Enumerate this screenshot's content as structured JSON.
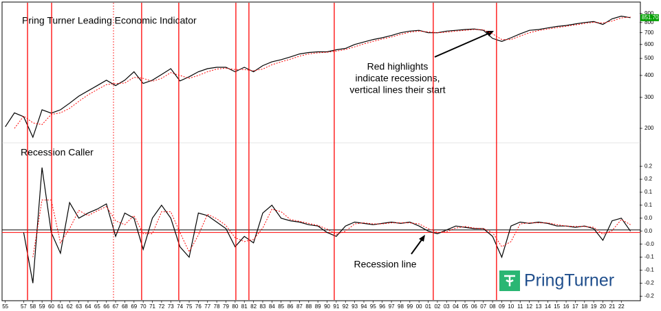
{
  "chart_data": [
    {
      "type": "line",
      "title": "Pring Turner Leading Economic Indicator",
      "log_scale": true,
      "x": [
        1955,
        1956,
        1957,
        1958,
        1959,
        1960,
        1961,
        1962,
        1963,
        1964,
        1965,
        1966,
        1967,
        1968,
        1969,
        1970,
        1971,
        1972,
        1973,
        1974,
        1975,
        1976,
        1977,
        1978,
        1979,
        1980,
        1981,
        1982,
        1983,
        1984,
        1985,
        1986,
        1987,
        1988,
        1989,
        1990,
        1991,
        1992,
        1993,
        1994,
        1995,
        1996,
        1997,
        1998,
        1999,
        2000,
        2001,
        2002,
        2003,
        2004,
        2005,
        2006,
        2007,
        2008,
        2009,
        2010,
        2011,
        2012,
        2013,
        2014,
        2015,
        2016,
        2017,
        2018,
        2019,
        2020,
        2021,
        2022,
        2023
      ],
      "series": [
        {
          "color": "#000000",
          "dash": false,
          "values": [
            204,
            245,
            233,
            178,
            255,
            244,
            255,
            278,
            305,
            327,
            350,
            376,
            350,
            376,
            420,
            360,
            376,
            405,
            437,
            372,
            393,
            420,
            437,
            445,
            445,
            420,
            445,
            420,
            455,
            478,
            492,
            510,
            530,
            540,
            545,
            545,
            560,
            570,
            600,
            620,
            640,
            655,
            675,
            700,
            715,
            722,
            700,
            700,
            715,
            722,
            730,
            735,
            722,
            650,
            625,
            655,
            690,
            722,
            730,
            745,
            760,
            770,
            785,
            800,
            810,
            780,
            840,
            870,
            852
          ]
        },
        {
          "color": "#ff0000",
          "dash": true,
          "values": [
            null,
            200,
            235,
            215,
            210,
            240,
            245,
            260,
            285,
            310,
            332,
            355,
            360,
            362,
            390,
            385,
            370,
            385,
            415,
            400,
            385,
            400,
            420,
            435,
            440,
            432,
            432,
            425,
            435,
            460,
            478,
            495,
            515,
            530,
            538,
            542,
            550,
            562,
            582,
            605,
            625,
            645,
            662,
            685,
            705,
            715,
            708,
            700,
            705,
            715,
            722,
            730,
            728,
            690,
            640,
            640,
            670,
            700,
            720,
            735,
            748,
            762,
            775,
            790,
            802,
            795,
            815,
            850,
            860
          ]
        }
      ],
      "xlim": [
        1954.8,
        2024.0
      ],
      "ylim": [
        167,
        1000
      ],
      "yticks": [
        200,
        300,
        400,
        500,
        600,
        700,
        800,
        900
      ],
      "current_value_label": "851.70",
      "vlines": [
        {
          "value": 1957.42,
          "color": "#ff0000",
          "dash": false
        },
        {
          "value": 1960.04,
          "color": "#ff0000",
          "dash": false
        },
        {
          "value": 1966.77,
          "color": "#ff0000",
          "dash": true
        },
        {
          "value": 1969.83,
          "color": "#ff0000",
          "dash": false
        },
        {
          "value": 1973.87,
          "color": "#ff0000",
          "dash": false
        },
        {
          "value": 1980.08,
          "color": "#ff0000",
          "dash": false
        },
        {
          "value": 1981.5,
          "color": "#ff0000",
          "dash": false
        },
        {
          "value": 1990.78,
          "color": "#ff0000",
          "dash": false
        },
        {
          "value": 2001.55,
          "color": "#ff0000",
          "dash": false
        },
        {
          "value": 2008.43,
          "color": "#ff0000",
          "dash": false
        }
      ],
      "annotation": [
        "Red highlights",
        "indicate recessions,",
        "vertical lines their start"
      ]
    },
    {
      "type": "line",
      "title": "Recession Caller",
      "x": [
        1955,
        1956,
        1957,
        1958,
        1959,
        1960,
        1961,
        1962,
        1963,
        1964,
        1965,
        1966,
        1967,
        1968,
        1969,
        1970,
        1971,
        1972,
        1973,
        1974,
        1975,
        1976,
        1977,
        1978,
        1979,
        1980,
        1981,
        1982,
        1983,
        1984,
        1985,
        1986,
        1987,
        1988,
        1989,
        1990,
        1991,
        1992,
        1993,
        1994,
        1995,
        1996,
        1997,
        1998,
        1999,
        2000,
        2001,
        2002,
        2003,
        2004,
        2005,
        2006,
        2007,
        2008,
        2009,
        2010,
        2011,
        2012,
        2013,
        2014,
        2015,
        2016,
        2017,
        2018,
        2019,
        2020,
        2021,
        2022,
        2023
      ],
      "series": [
        {
          "color": "#000000",
          "dash": false,
          "values": [
            null,
            null,
            -0.005,
            -0.2,
            0.245,
            -0.005,
            -0.085,
            0.11,
            0.05,
            0.07,
            0.085,
            0.105,
            -0.02,
            0.07,
            0.05,
            -0.07,
            0.05,
            0.1,
            0.05,
            -0.06,
            -0.1,
            0.07,
            0.06,
            0.035,
            0.01,
            -0.06,
            -0.02,
            -0.045,
            0.07,
            0.1,
            0.05,
            0.04,
            0.035,
            0.025,
            0.02,
            -0.005,
            -0.02,
            0.02,
            0.035,
            0.03,
            0.025,
            0.03,
            0.035,
            0.03,
            0.035,
            0.02,
            0,
            -0.01,
            0.005,
            0.02,
            0.015,
            0.01,
            0.01,
            -0.02,
            -0.1,
            0.02,
            0.035,
            0.03,
            0.035,
            0.03,
            0.02,
            0.02,
            0.015,
            0.02,
            0.01,
            -0.035,
            0.04,
            0.05,
            0.0
          ]
        },
        {
          "color": "#ff0000",
          "dash": true,
          "values": [
            null,
            null,
            null,
            -0.1,
            0.12,
            0.12,
            -0.045,
            0.01,
            0.08,
            0.06,
            0.078,
            0.095,
            0.04,
            0.025,
            0.06,
            -0.01,
            -0.01,
            0.075,
            0.075,
            -0.005,
            -0.08,
            -0.015,
            0.065,
            0.048,
            0.022,
            -0.025,
            -0.04,
            -0.032,
            0.012,
            0.085,
            0.075,
            0.045,
            0.038,
            0.03,
            0.022,
            0.008,
            -0.012,
            0.0,
            0.028,
            0.032,
            0.028,
            0.028,
            0.032,
            0.032,
            0.032,
            0.028,
            0.01,
            -0.005,
            -0.002,
            0.012,
            0.018,
            0.012,
            0.01,
            -0.005,
            -0.06,
            -0.04,
            0.028,
            0.032,
            0.032,
            0.032,
            0.025,
            0.02,
            0.018,
            0.018,
            0.015,
            -0.012,
            0.002,
            0.045,
            0.025
          ]
        }
      ],
      "xlim": [
        1954.8,
        2024.0
      ],
      "ylim": [
        -0.265,
        0.335
      ],
      "yticks": [
        {
          "value": 0.25,
          "label": "0.2"
        },
        {
          "value": 0.2,
          "label": "0.2"
        },
        {
          "value": 0.15,
          "label": "0.1"
        },
        {
          "value": 0.1,
          "label": "0.1"
        },
        {
          "value": 0.05,
          "label": "0.0"
        },
        {
          "value": 0.0,
          "label": "0.0"
        },
        {
          "value": -0.05,
          "label": "-0.0"
        },
        {
          "value": -0.1,
          "label": "-0.1"
        },
        {
          "value": -0.15,
          "label": "-0.1"
        },
        {
          "value": -0.2,
          "label": "-0.2"
        },
        {
          "value": -0.25,
          "label": "-0.2"
        }
      ],
      "hlines": [
        {
          "value": 0.005,
          "color": "#000000"
        },
        {
          "value": -0.005,
          "color": "#ff0000"
        }
      ],
      "annotation": "Recession line",
      "xticks": [
        {
          "value": 1955,
          "label": "55"
        },
        {
          "value": 1957,
          "label": "57"
        },
        {
          "value": 1958,
          "label": "58"
        },
        {
          "value": 1959,
          "label": "59"
        },
        {
          "value": 1960,
          "label": "60"
        },
        {
          "value": 1961,
          "label": "61"
        },
        {
          "value": 1962,
          "label": "62"
        },
        {
          "value": 1963,
          "label": "63"
        },
        {
          "value": 1964,
          "label": "64"
        },
        {
          "value": 1965,
          "label": "65"
        },
        {
          "value": 1966,
          "label": "66"
        },
        {
          "value": 1967,
          "label": "67"
        },
        {
          "value": 1968,
          "label": "68"
        },
        {
          "value": 1969,
          "label": "69"
        },
        {
          "value": 1970,
          "label": "70"
        },
        {
          "value": 1971,
          "label": "71"
        },
        {
          "value": 1972,
          "label": "72"
        },
        {
          "value": 1973,
          "label": "73"
        },
        {
          "value": 1974,
          "label": "74"
        },
        {
          "value": 1975,
          "label": "75"
        },
        {
          "value": 1976,
          "label": "76"
        },
        {
          "value": 1977,
          "label": "77"
        },
        {
          "value": 1978,
          "label": "78"
        },
        {
          "value": 1979,
          "label": "79"
        },
        {
          "value": 1980,
          "label": "80"
        },
        {
          "value": 1981,
          "label": "81"
        },
        {
          "value": 1982,
          "label": "82"
        },
        {
          "value": 1983,
          "label": "83"
        },
        {
          "value": 1984,
          "label": "84"
        },
        {
          "value": 1985,
          "label": "85"
        },
        {
          "value": 1986,
          "label": "86"
        },
        {
          "value": 1987,
          "label": "87"
        },
        {
          "value": 1988,
          "label": "88"
        },
        {
          "value": 1989,
          "label": "89"
        },
        {
          "value": 1990,
          "label": "90"
        },
        {
          "value": 1991,
          "label": "91"
        },
        {
          "value": 1992,
          "label": "92"
        },
        {
          "value": 1993,
          "label": "93"
        },
        {
          "value": 1994,
          "label": "94"
        },
        {
          "value": 1995,
          "label": "95"
        },
        {
          "value": 1996,
          "label": "96"
        },
        {
          "value": 1997,
          "label": "97"
        },
        {
          "value": 1998,
          "label": "98"
        },
        {
          "value": 1999,
          "label": "99"
        },
        {
          "value": 2000,
          "label": "00"
        },
        {
          "value": 2001,
          "label": "01"
        },
        {
          "value": 2002,
          "label": "02"
        },
        {
          "value": 2003,
          "label": "03"
        },
        {
          "value": 2004,
          "label": "04"
        },
        {
          "value": 2005,
          "label": "05"
        },
        {
          "value": 2006,
          "label": "06"
        },
        {
          "value": 2007,
          "label": "07"
        },
        {
          "value": 2008,
          "label": "08"
        },
        {
          "value": 2009,
          "label": "09"
        },
        {
          "value": 2010,
          "label": "10"
        },
        {
          "value": 2011,
          "label": "11"
        },
        {
          "value": 2012,
          "label": "12"
        },
        {
          "value": 2013,
          "label": "13"
        },
        {
          "value": 2014,
          "label": "14"
        },
        {
          "value": 2015,
          "label": "15"
        },
        {
          "value": 2016,
          "label": "16"
        },
        {
          "value": 2017,
          "label": "17"
        },
        {
          "value": 2018,
          "label": "18"
        },
        {
          "value": 2019,
          "label": "19"
        },
        {
          "value": 2020,
          "label": "20"
        },
        {
          "value": 2021,
          "label": "21"
        },
        {
          "value": 2022,
          "label": "22"
        }
      ]
    }
  ],
  "logo_text": "PringTurner"
}
